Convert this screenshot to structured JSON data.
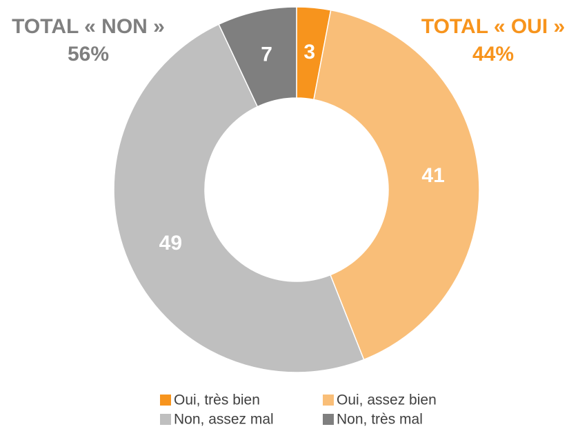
{
  "chart_data": {
    "type": "donut",
    "categories": [
      "Oui, très bien",
      "Oui, assez bien",
      "Non, assez mal",
      "Non, très mal"
    ],
    "values": [
      3,
      41,
      49,
      7
    ],
    "colors": [
      "#f7941d",
      "#f9be78",
      "#bfbfbf",
      "#7f7f7f"
    ],
    "annotations": [
      {
        "text": "TOTAL « NON »",
        "label": "56%",
        "color": "#7f7f7f"
      },
      {
        "text": "TOTAL « OUI »",
        "label": "44%",
        "color": "#f7941d"
      }
    ],
    "legend": "bottom"
  }
}
